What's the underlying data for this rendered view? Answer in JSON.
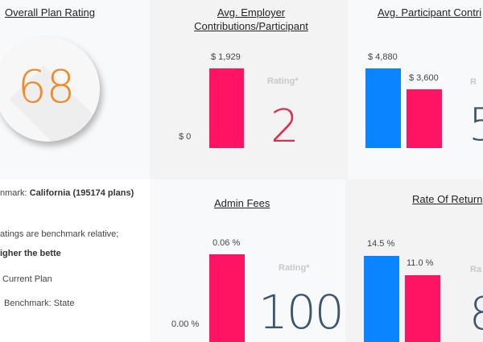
{
  "colors": {
    "current_plan": "#fe1463",
    "benchmark": "#0a84ff",
    "overall_rating": "#f08a24",
    "rating_red": "#d92f52",
    "rating_slate": "#3c5670"
  },
  "overall": {
    "title": "Overall Plan Rating",
    "value": "68"
  },
  "employer": {
    "title_line1": "Avg. Employer",
    "title_line2": "Contributions/Participant",
    "bar_label": "$ 1,929",
    "axis_label": "$ 0",
    "rating_label": "Rating*",
    "rating": "2"
  },
  "participant": {
    "title": "Avg. Participant Contri",
    "benchmark_label": "$ 4,880",
    "current_label": "$ 3,600",
    "rating_label": "R",
    "rating": "5"
  },
  "info": {
    "benchmark_prefix": "nmark: ",
    "benchmark_value": "California (195174 plans)",
    "note_line1": "atings are benchmark relative;",
    "note_line2": "igher the bette",
    "legend": [
      {
        "label": "Current Plan"
      },
      {
        "label": "Benchmark: State"
      }
    ]
  },
  "admin": {
    "title": "Admin Fees",
    "bar_label": "0.06 %",
    "axis_label": "0.00 %",
    "rating_label": "Rating*",
    "rating": "100"
  },
  "returns": {
    "title": "Rate Of Return",
    "benchmark_label": "14.5 %",
    "current_label": "11.0 %",
    "rating_label": "Ra",
    "rating": "8"
  },
  "chart_data": [
    {
      "type": "bar",
      "title": "Avg. Employer Contributions/Participant",
      "series": [
        {
          "name": "Current Plan",
          "values": [
            1929
          ]
        }
      ],
      "unit": "$"
    },
    {
      "type": "bar",
      "title": "Avg. Participant Contributions",
      "series": [
        {
          "name": "Benchmark: State",
          "values": [
            4880
          ]
        },
        {
          "name": "Current Plan",
          "values": [
            3600
          ]
        }
      ],
      "unit": "$"
    },
    {
      "type": "bar",
      "title": "Admin Fees",
      "series": [
        {
          "name": "Current Plan",
          "values": [
            0.06
          ]
        }
      ],
      "unit": "%"
    },
    {
      "type": "bar",
      "title": "Rate Of Return",
      "series": [
        {
          "name": "Benchmark: State",
          "values": [
            14.5
          ]
        },
        {
          "name": "Current Plan",
          "values": [
            11.0
          ]
        }
      ],
      "unit": "%"
    }
  ]
}
